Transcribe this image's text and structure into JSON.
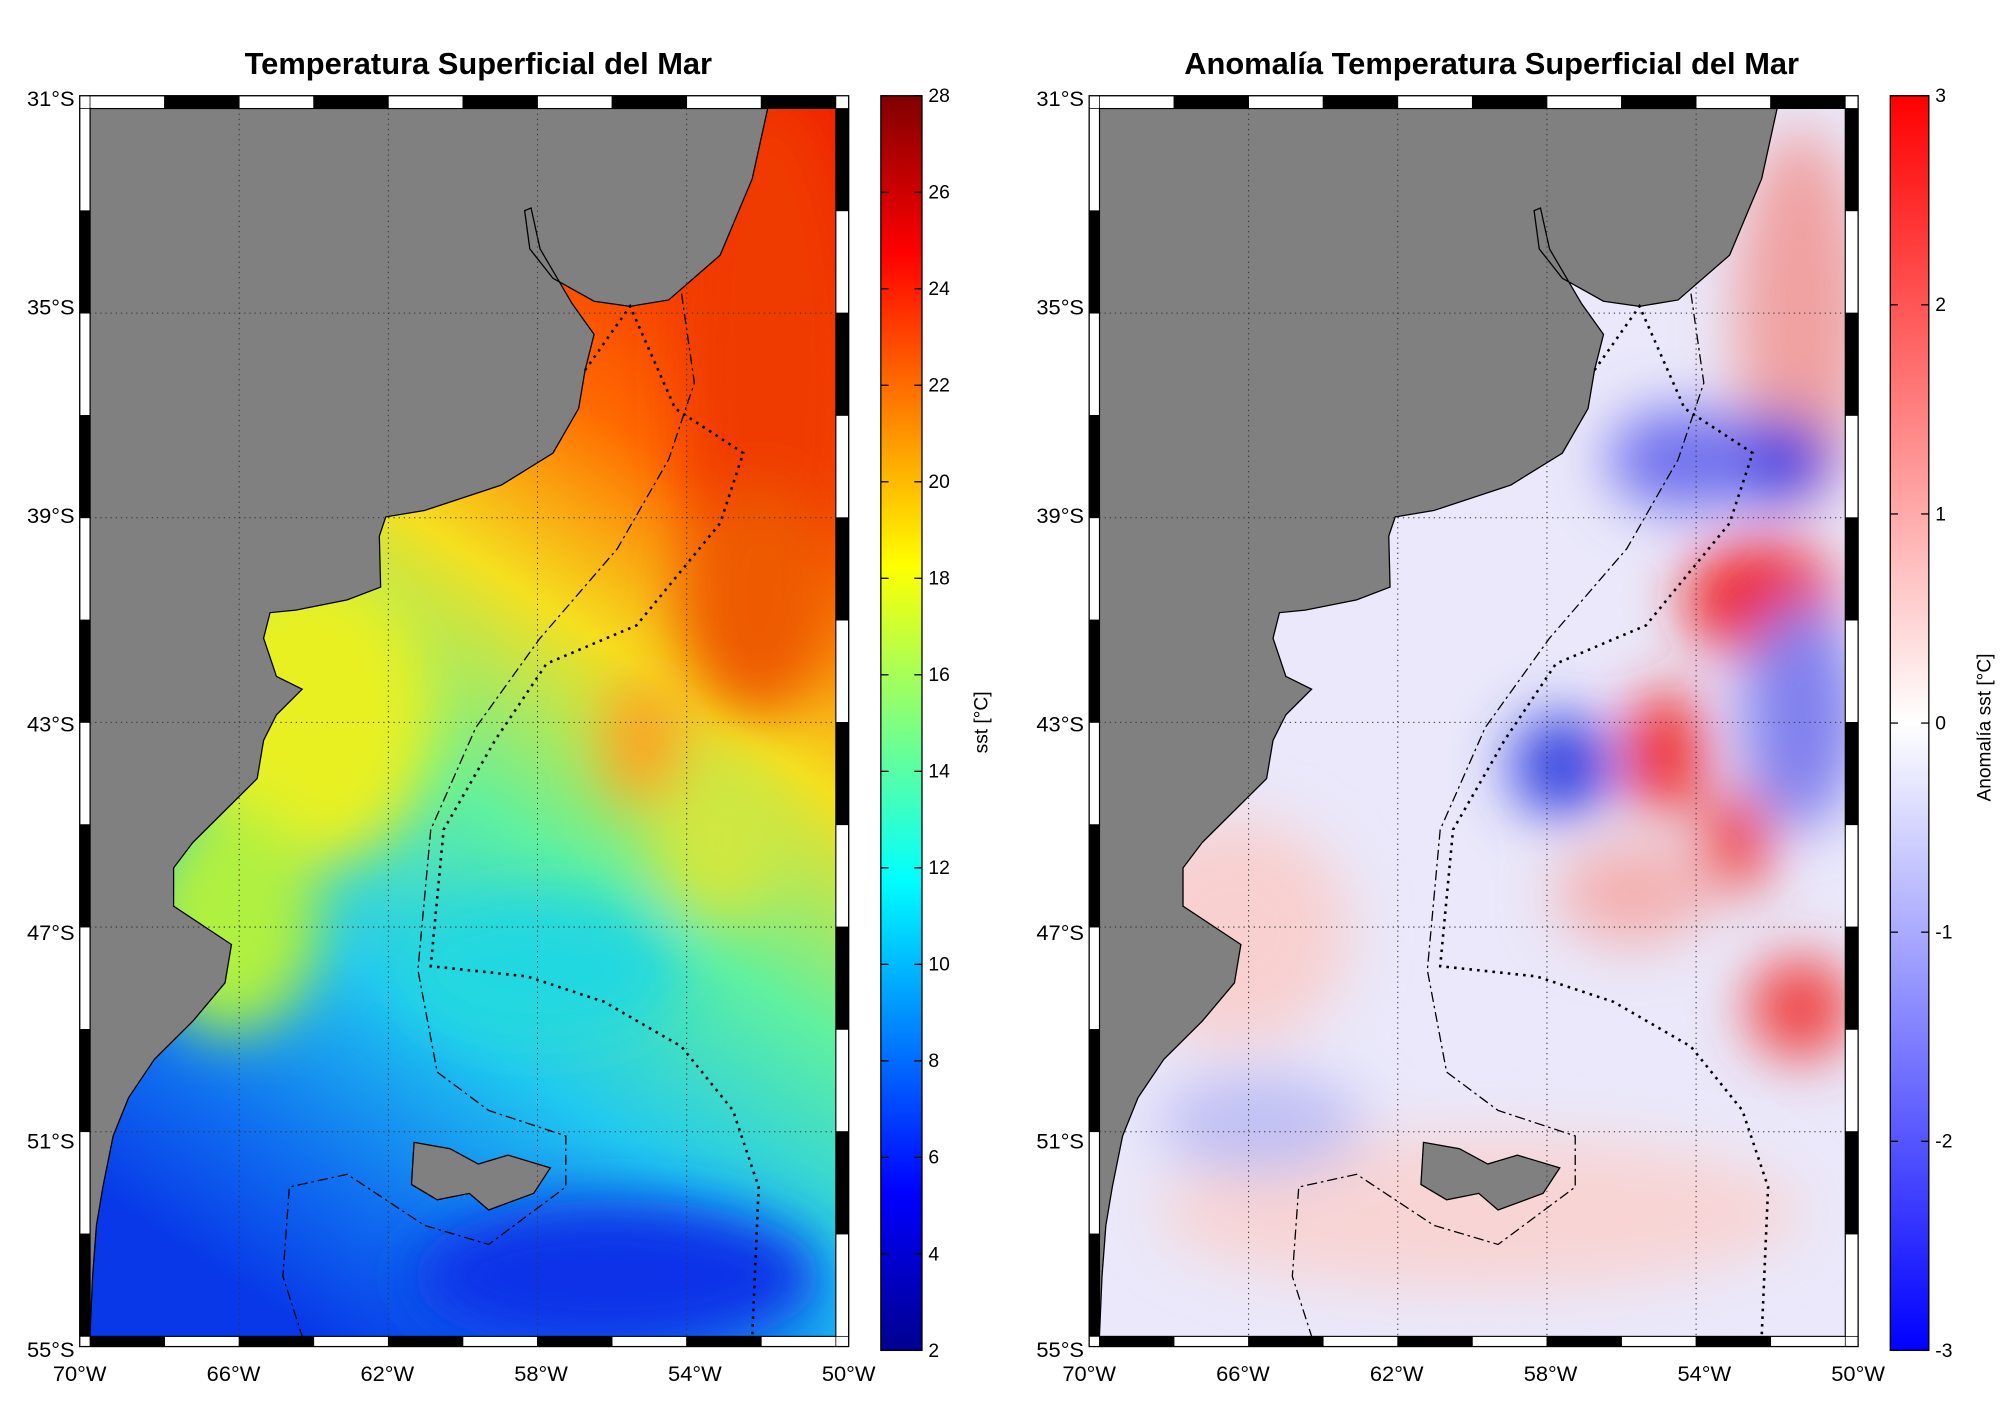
{
  "chart_data": [
    {
      "type": "heatmap",
      "title": "Temperatura Superficial del Mar",
      "colorbar_label": "sst [°C]",
      "colormap": "jet",
      "clim": [
        2,
        28
      ],
      "colorbar_ticks": [
        "2",
        "4",
        "6",
        "8",
        "10",
        "12",
        "14",
        "16",
        "18",
        "20",
        "22",
        "24",
        "26",
        "28"
      ],
      "x_ticks": [
        "70°W",
        "66°W",
        "62°W",
        "58°W",
        "54°W",
        "50°W"
      ],
      "y_ticks": [
        "31°S",
        "35°S",
        "39°S",
        "43°S",
        "47°S",
        "51°S",
        "55°S"
      ],
      "lon_range": [
        -70,
        -50
      ],
      "lat_range": [
        -55,
        -31
      ],
      "grid": true,
      "land_color": "#808080"
    },
    {
      "type": "heatmap",
      "title": "Anomalía Temperatura Superficial del Mar",
      "colorbar_label": "Anomalía sst [°C]",
      "colormap": "blue-white-red",
      "clim": [
        -3,
        3
      ],
      "colorbar_ticks": [
        "-3",
        "-2",
        "-1",
        "0",
        "1",
        "2",
        "3"
      ],
      "x_ticks": [
        "70°W",
        "66°W",
        "62°W",
        "58°W",
        "54°W",
        "50°W"
      ],
      "y_ticks": [
        "31°S",
        "35°S",
        "39°S",
        "43°S",
        "47°S",
        "51°S",
        "55°S"
      ],
      "lon_range": [
        -70,
        -50
      ],
      "lat_range": [
        -55,
        -31
      ],
      "grid": true,
      "land_color": "#808080"
    }
  ]
}
